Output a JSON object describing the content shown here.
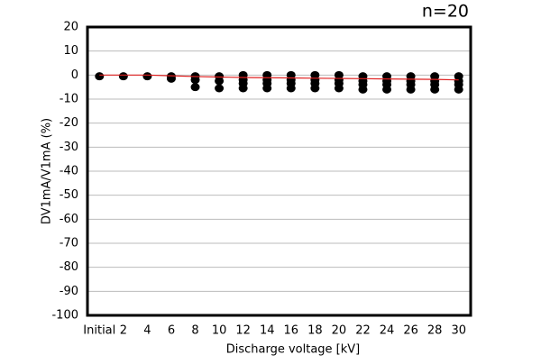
{
  "chart_data": {
    "type": "scatter",
    "annotation": "n=20",
    "x_label": "Discharge voltage [kV]",
    "y_label": "DV1mA/V1mA (%)",
    "categories": [
      "Initial",
      "2",
      "4",
      "6",
      "8",
      "10",
      "12",
      "14",
      "16",
      "18",
      "20",
      "22",
      "24",
      "26",
      "28",
      "30"
    ],
    "ylim": [
      -100,
      20
    ],
    "yticks": [
      -100,
      -90,
      -80,
      -70,
      -60,
      -50,
      -40,
      -30,
      -20,
      -10,
      0,
      10,
      20
    ],
    "grid": true,
    "series": [
      {
        "type": "scatter",
        "color": "#000000",
        "values": [
          -0.5,
          -0.5,
          -0.5,
          -0.5,
          -0.5,
          -0.5,
          0,
          0,
          0,
          0,
          0,
          -0.5,
          -0.5,
          -0.5,
          -0.5,
          -0.5
        ]
      },
      {
        "type": "scatter",
        "color": "#000000",
        "values": [
          null,
          null,
          null,
          -1.5,
          -2,
          -2.5,
          -2,
          -2,
          -2,
          -2,
          -2,
          -2.5,
          -2.5,
          -2.5,
          -2.5,
          -2.5
        ]
      },
      {
        "type": "scatter",
        "color": "#000000",
        "values": [
          null,
          null,
          null,
          null,
          null,
          null,
          -3.5,
          -3.5,
          -3.5,
          -3.5,
          -3.5,
          -4,
          -4,
          -4,
          -4,
          -4
        ]
      },
      {
        "type": "scatter",
        "color": "#000000",
        "values": [
          null,
          null,
          null,
          null,
          -5,
          -5.5,
          -5.5,
          -5.5,
          -5.5,
          -5.5,
          -5.5,
          -6,
          -6,
          -6,
          -6,
          -6
        ]
      },
      {
        "type": "line",
        "color": "#e02020",
        "values": [
          0,
          0,
          0,
          -0.3,
          -0.6,
          -0.8,
          -1,
          -1.1,
          -1.2,
          -1.3,
          -1.4,
          -1.5,
          -1.6,
          -1.7,
          -1.8,
          -2
        ]
      }
    ]
  }
}
